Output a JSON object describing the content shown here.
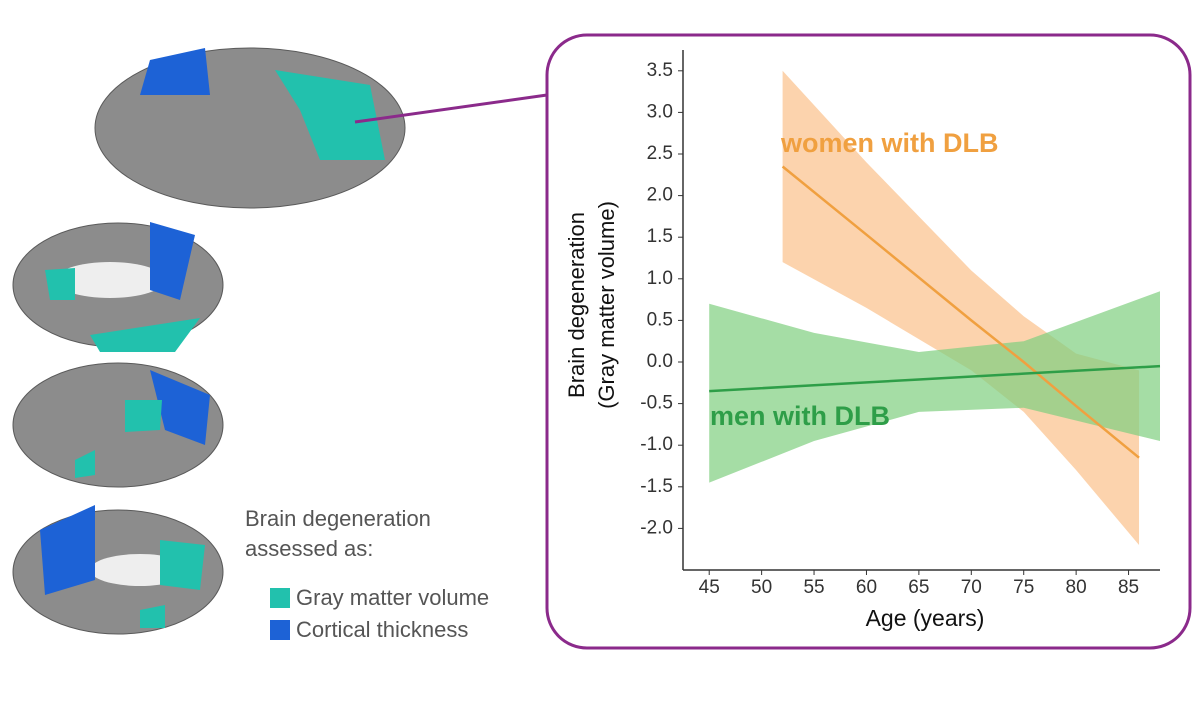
{
  "chart_data": {
    "type": "line",
    "ylabel": [
      "Brain degeneration",
      "(Gray matter volume)"
    ],
    "xlabel": "Age (years)",
    "xlim": [
      42.5,
      88
    ],
    "ylim": [
      -2.5,
      3.75
    ],
    "xticks": [
      45,
      50,
      55,
      60,
      65,
      70,
      75,
      80,
      85
    ],
    "yticks": [
      3.5,
      {
        "value": 3,
        "label": "3.0"
      },
      2.5,
      {
        "value": 2,
        "label": "2.0"
      },
      1.5,
      {
        "value": 1,
        "label": "1.0"
      },
      0.5,
      {
        "value": 0,
        "label": "0.0"
      },
      -0.5,
      {
        "value": -1,
        "label": "-1.0"
      },
      -1.5,
      {
        "value": -2,
        "label": "-2.0"
      }
    ],
    "series": [
      {
        "name": "women with DLB",
        "color": "#f0a040",
        "band_color": "#fbc08a",
        "x": [
          52,
          60,
          70,
          75,
          80,
          86
        ],
        "values": [
          2.35,
          1.53,
          0.5,
          0.0,
          -0.53,
          -1.15
        ],
        "upper": [
          3.5,
          2.4,
          1.1,
          0.55,
          0.1,
          -0.1
        ],
        "lower": [
          1.2,
          0.65,
          -0.1,
          -0.6,
          -1.3,
          -2.2
        ]
      },
      {
        "name": "men with DLB",
        "color": "#2e9e48",
        "band_color": "#7fcf7f",
        "x": [
          45,
          55,
          65,
          75,
          88
        ],
        "values": [
          -0.35,
          -0.28,
          -0.21,
          -0.14,
          -0.05
        ],
        "upper": [
          0.7,
          0.35,
          0.12,
          0.25,
          0.85
        ],
        "lower": [
          -1.45,
          -0.95,
          -0.6,
          -0.55,
          -0.95
        ]
      }
    ]
  },
  "brain_legend": {
    "title": [
      "Brain degeneration",
      "assessed as:"
    ],
    "items": [
      {
        "label": "Gray matter volume",
        "color": "#22c1ad"
      },
      {
        "label": "Cortical thickness",
        "color": "#1d62d6"
      }
    ]
  }
}
